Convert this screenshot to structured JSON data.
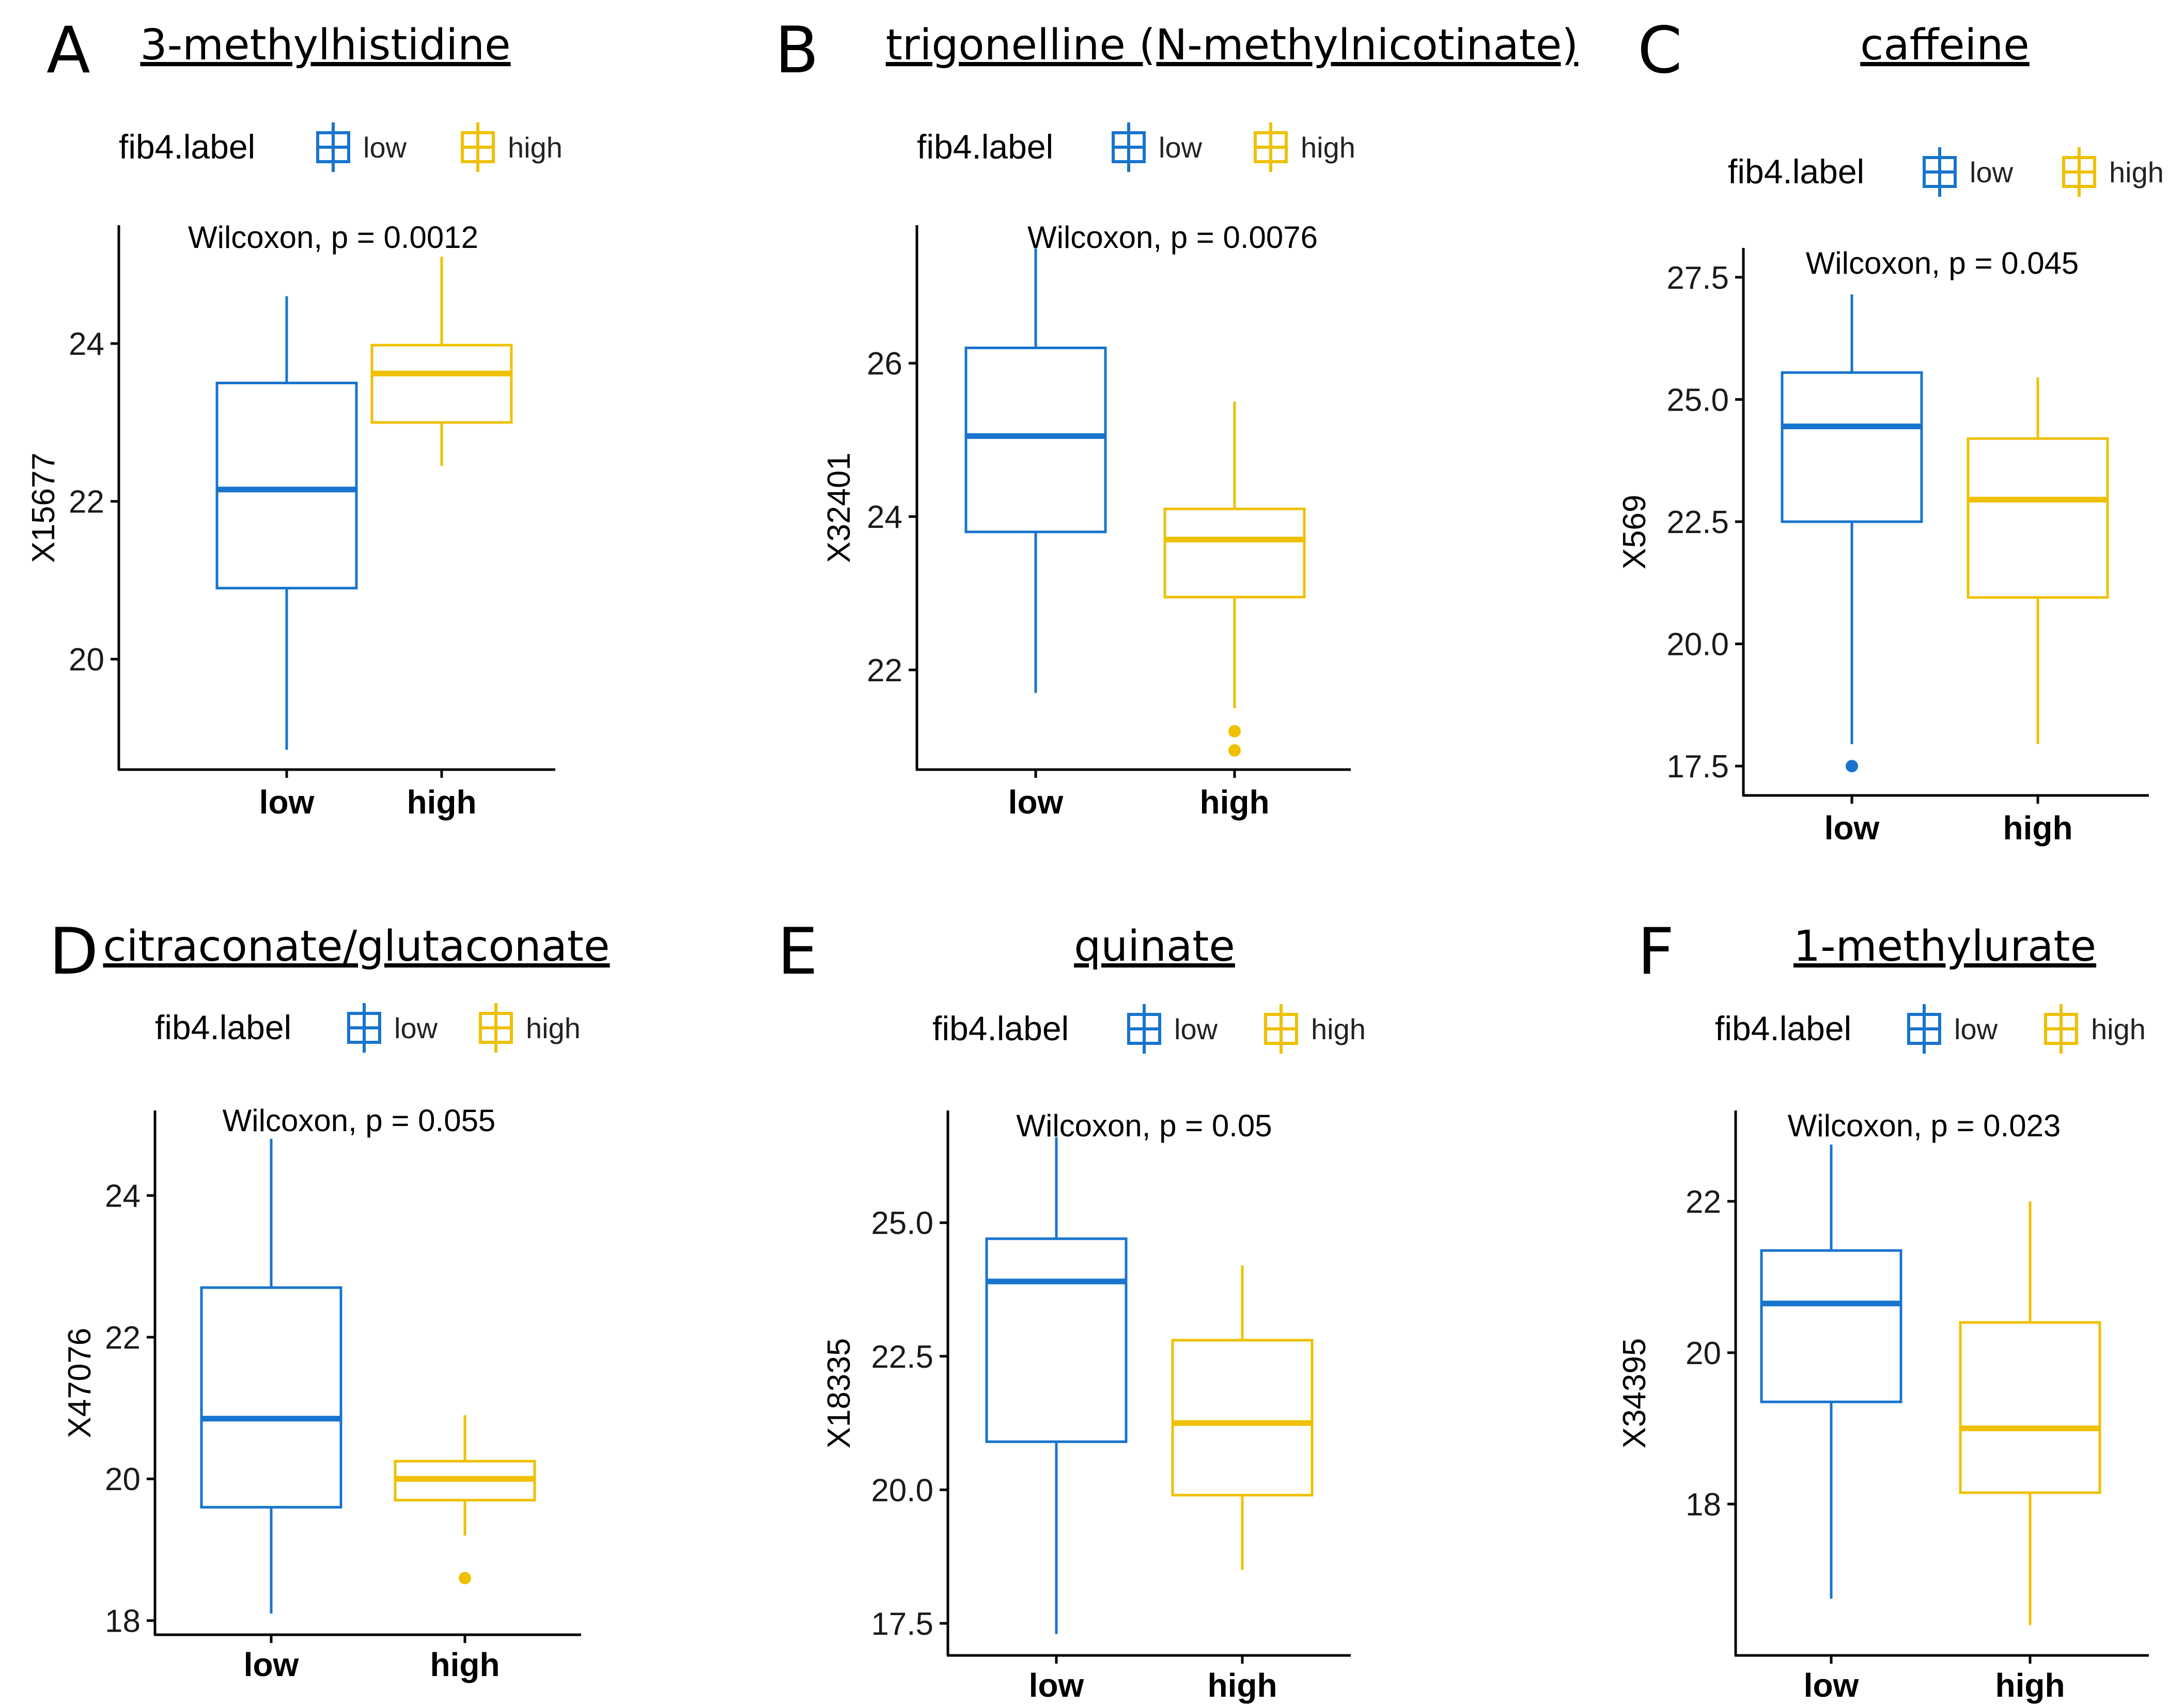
{
  "colors": {
    "low": "#1874CD",
    "high": "#EEC000",
    "axis": "#000000"
  },
  "chart_data": [
    {
      "panel": "A",
      "type": "box",
      "title": "3-methylhistidine",
      "legend": {
        "title": "fib4.label",
        "entries": [
          "low",
          "high"
        ]
      },
      "stat_text": "Wilcoxon, p = 0.0012",
      "xlabel": "",
      "ylabel": "X15677",
      "categories": [
        "low",
        "high"
      ],
      "ylim": [
        18.6,
        25.5
      ],
      "ticks": [
        {
          "value": 20,
          "label": "20"
        },
        {
          "value": 22,
          "label": "22"
        },
        {
          "value": 24,
          "label": "24"
        }
      ],
      "boxes": [
        {
          "group": "low",
          "whisker_low": 18.85,
          "q1": 20.9,
          "median": 22.15,
          "q3": 23.5,
          "whisker_high": 24.6,
          "outliers": []
        },
        {
          "group": "high",
          "whisker_low": 22.45,
          "q1": 23.0,
          "median": 23.62,
          "q3": 23.98,
          "whisker_high": 25.1,
          "outliers": []
        }
      ]
    },
    {
      "panel": "B",
      "type": "box",
      "title": "trigonelline (N-methylnicotinate)",
      "legend": {
        "title": "fib4.label",
        "entries": [
          "low",
          "high"
        ]
      },
      "stat_text": "Wilcoxon, p = 0.0076",
      "xlabel": "",
      "ylabel": "X32401",
      "categories": [
        "low",
        "high"
      ],
      "ylim": [
        20.7,
        27.8
      ],
      "ticks": [
        {
          "value": 22,
          "label": "22"
        },
        {
          "value": 24,
          "label": "24"
        },
        {
          "value": 26,
          "label": "26"
        }
      ],
      "boxes": [
        {
          "group": "low",
          "whisker_low": 21.7,
          "q1": 23.8,
          "median": 25.05,
          "q3": 26.2,
          "whisker_high": 27.5,
          "outliers": []
        },
        {
          "group": "high",
          "whisker_low": 21.5,
          "q1": 22.95,
          "median": 23.7,
          "q3": 24.1,
          "whisker_high": 25.5,
          "outliers": [
            21.2,
            20.95
          ]
        }
      ]
    },
    {
      "panel": "C",
      "type": "box",
      "title": "caffeine",
      "legend": {
        "title": "fib4.label",
        "entries": [
          "low",
          "high"
        ]
      },
      "stat_text": "Wilcoxon, p = 0.045",
      "xlabel": "",
      "ylabel": "X569",
      "categories": [
        "low",
        "high"
      ],
      "ylim": [
        16.9,
        28.1
      ],
      "ticks": [
        {
          "value": 17.5,
          "label": "17.5"
        },
        {
          "value": 20.0,
          "label": "20.0"
        },
        {
          "value": 22.5,
          "label": "22.5"
        },
        {
          "value": 25.0,
          "label": "25.0"
        },
        {
          "value": 27.5,
          "label": "27.5"
        }
      ],
      "boxes": [
        {
          "group": "low",
          "whisker_low": 17.95,
          "q1": 22.5,
          "median": 24.45,
          "q3": 25.55,
          "whisker_high": 27.15,
          "outliers": [
            17.5
          ]
        },
        {
          "group": "high",
          "whisker_low": 17.95,
          "q1": 20.95,
          "median": 22.95,
          "q3": 24.2,
          "whisker_high": 25.45,
          "outliers": []
        }
      ]
    },
    {
      "panel": "D",
      "type": "box",
      "title": "citraconate/glutaconate",
      "legend": {
        "title": "fib4.label",
        "entries": [
          "low",
          "high"
        ]
      },
      "stat_text": "Wilcoxon, p = 0.055",
      "xlabel": "",
      "ylabel": "X47076",
      "categories": [
        "low",
        "high"
      ],
      "ylim": [
        17.8,
        25.2
      ],
      "ticks": [
        {
          "value": 18,
          "label": "18"
        },
        {
          "value": 20,
          "label": "20"
        },
        {
          "value": 22,
          "label": "22"
        },
        {
          "value": 24,
          "label": "24"
        }
      ],
      "boxes": [
        {
          "group": "low",
          "whisker_low": 18.1,
          "q1": 19.6,
          "median": 20.85,
          "q3": 22.7,
          "whisker_high": 24.8,
          "outliers": []
        },
        {
          "group": "high",
          "whisker_low": 19.2,
          "q1": 19.7,
          "median": 20.0,
          "q3": 20.25,
          "whisker_high": 20.9,
          "outliers": [
            18.6
          ]
        }
      ]
    },
    {
      "panel": "E",
      "type": "box",
      "title": "quinate",
      "legend": {
        "title": "fib4.label",
        "entries": [
          "low",
          "high"
        ]
      },
      "stat_text": "Wilcoxon, p = 0.05",
      "xlabel": "",
      "ylabel": "X18335",
      "categories": [
        "low",
        "high"
      ],
      "ylim": [
        16.9,
        27.1
      ],
      "ticks": [
        {
          "value": 17.5,
          "label": "17.5"
        },
        {
          "value": 20.0,
          "label": "20.0"
        },
        {
          "value": 22.5,
          "label": "22.5"
        },
        {
          "value": 25.0,
          "label": "25.0"
        }
      ],
      "boxes": [
        {
          "group": "low",
          "whisker_low": 17.3,
          "q1": 20.9,
          "median": 23.9,
          "q3": 24.7,
          "whisker_high": 26.6,
          "outliers": []
        },
        {
          "group": "high",
          "whisker_low": 18.5,
          "q1": 19.9,
          "median": 21.25,
          "q3": 22.8,
          "whisker_high": 24.2,
          "outliers": []
        }
      ]
    },
    {
      "panel": "F",
      "type": "box",
      "title": "1-methylurate",
      "legend": {
        "title": "fib4.label",
        "entries": [
          "low",
          "high"
        ]
      },
      "stat_text": "Wilcoxon, p = 0.023",
      "xlabel": "",
      "ylabel": "X34395",
      "categories": [
        "low",
        "high"
      ],
      "ylim": [
        16.0,
        23.2
      ],
      "ticks": [
        {
          "value": 18,
          "label": "18"
        },
        {
          "value": 20,
          "label": "20"
        },
        {
          "value": 22,
          "label": "22"
        }
      ],
      "boxes": [
        {
          "group": "low",
          "whisker_low": 16.75,
          "q1": 19.35,
          "median": 20.65,
          "q3": 21.35,
          "whisker_high": 22.75,
          "outliers": []
        },
        {
          "group": "high",
          "whisker_low": 16.4,
          "q1": 18.15,
          "median": 19.0,
          "q3": 20.4,
          "whisker_high": 22.0,
          "outliers": []
        }
      ]
    }
  ]
}
